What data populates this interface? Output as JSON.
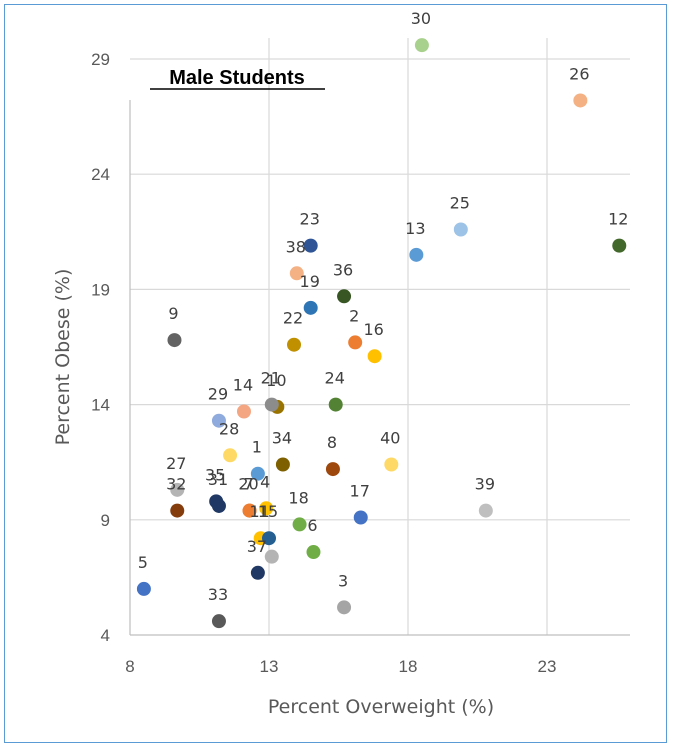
{
  "chart_data": {
    "type": "scatter",
    "title": "Male Students",
    "xlabel": "Percent Overweight (%)",
    "ylabel": "Percent Obese (%)",
    "xlim": [
      8,
      26
    ],
    "ylim": [
      4,
      30.5
    ],
    "x_ticks": [
      8,
      13,
      18,
      23
    ],
    "y_ticks": [
      4,
      9,
      14,
      19,
      24,
      29
    ],
    "grid": true,
    "legend": "none",
    "points": [
      {
        "label": "1",
        "x": 12.6,
        "y": 11.0,
        "color": "#5b9bd5"
      },
      {
        "label": "2",
        "x": 16.1,
        "y": 16.7,
        "color": "#ed7d31"
      },
      {
        "label": "3",
        "x": 15.7,
        "y": 5.2,
        "color": "#a5a5a5"
      },
      {
        "label": "4",
        "x": 12.9,
        "y": 9.5,
        "color": "#ffc000"
      },
      {
        "label": "5",
        "x": 8.5,
        "y": 6.0,
        "color": "#4472c4"
      },
      {
        "label": "6",
        "x": 14.6,
        "y": 7.6,
        "color": "#70ad47"
      },
      {
        "label": "7",
        "x": 12.3,
        "y": 9.4,
        "color": "#ed7d31"
      },
      {
        "label": "8",
        "x": 15.3,
        "y": 11.2,
        "color": "#9e480e"
      },
      {
        "label": "9",
        "x": 9.6,
        "y": 16.8,
        "color": "#636363"
      },
      {
        "label": "10",
        "x": 13.3,
        "y": 13.9,
        "color": "#997300"
      },
      {
        "label": "11",
        "x": 12.7,
        "y": 8.2,
        "color": "#ffc000"
      },
      {
        "label": "12",
        "x": 25.6,
        "y": 20.9,
        "color": "#43682b"
      },
      {
        "label": "13",
        "x": 18.3,
        "y": 20.5,
        "color": "#5b9bd5"
      },
      {
        "label": "14",
        "x": 12.1,
        "y": 13.7,
        "color": "#f4a582"
      },
      {
        "label": "15",
        "x": 13.0,
        "y": 8.2,
        "color": "#255e91"
      },
      {
        "label": "16",
        "x": 16.8,
        "y": 16.1,
        "color": "#ffc000"
      },
      {
        "label": "17",
        "x": 16.3,
        "y": 9.1,
        "color": "#4472c4"
      },
      {
        "label": "18",
        "x": 14.1,
        "y": 8.8,
        "color": "#70ad47"
      },
      {
        "label": "19",
        "x": 14.5,
        "y": 18.2,
        "color": "#2e75b6"
      },
      {
        "label": "20",
        "x": 12.3,
        "y": 9.4,
        "color": "#ed7d31"
      },
      {
        "label": "21",
        "x": 13.1,
        "y": 14.0,
        "color": "#8c8c8c"
      },
      {
        "label": "22",
        "x": 13.9,
        "y": 16.6,
        "color": "#c09000"
      },
      {
        "label": "23",
        "x": 14.5,
        "y": 20.9,
        "color": "#2f5597"
      },
      {
        "label": "24",
        "x": 15.4,
        "y": 14.0,
        "color": "#548235"
      },
      {
        "label": "25",
        "x": 19.9,
        "y": 21.6,
        "color": "#9dc3e6"
      },
      {
        "label": "26",
        "x": 24.2,
        "y": 27.2,
        "color": "#f4b183"
      },
      {
        "label": "27",
        "x": 9.7,
        "y": 10.3,
        "color": "#b4b4b4"
      },
      {
        "label": "28",
        "x": 11.6,
        "y": 11.8,
        "color": "#ffd966"
      },
      {
        "label": "29",
        "x": 11.2,
        "y": 13.3,
        "color": "#8faadc"
      },
      {
        "label": "30",
        "x": 18.5,
        "y": 29.6,
        "color": "#a9d18e"
      },
      {
        "label": "31",
        "x": 11.2,
        "y": 9.6,
        "color": "#1f3864"
      },
      {
        "label": "32",
        "x": 9.7,
        "y": 9.4,
        "color": "#843c0c"
      },
      {
        "label": "33",
        "x": 11.2,
        "y": 4.6,
        "color": "#595959"
      },
      {
        "label": "34",
        "x": 13.5,
        "y": 11.4,
        "color": "#7f6000"
      },
      {
        "label": "35",
        "x": 11.1,
        "y": 9.8,
        "color": "#203864"
      },
      {
        "label": "36",
        "x": 15.7,
        "y": 18.7,
        "color": "#375623"
      },
      {
        "label": "37",
        "x": 12.6,
        "y": 6.7,
        "color": "#203864"
      },
      {
        "label": "38",
        "x": 14.0,
        "y": 19.7,
        "color": "#f4b183"
      },
      {
        "label": "39",
        "x": 20.8,
        "y": 9.4,
        "color": "#bfbfbf"
      },
      {
        "label": "40",
        "x": 17.4,
        "y": 11.4,
        "color": "#ffd966"
      },
      {
        "label": "",
        "x": 13.1,
        "y": 7.4,
        "color": "#b4b4b4"
      }
    ]
  },
  "colors": {
    "border": "#5b9bd5",
    "grid": "#d9d9d9",
    "axis": "#bfbfbf",
    "text": "#595959"
  }
}
